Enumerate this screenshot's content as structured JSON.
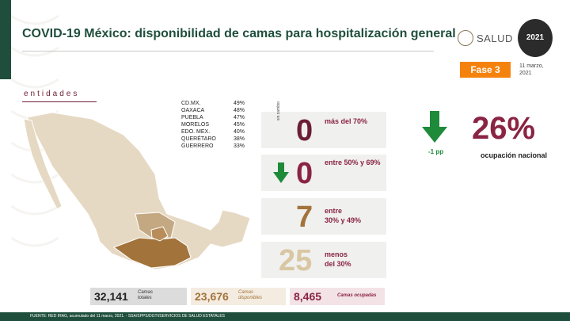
{
  "header": {
    "title": "COVID-19 México: disponibilidad de camas para hospitalización general",
    "salud_logo": "SALUD",
    "year_logo": "2021",
    "phase": "Fase 3",
    "date_line1": "11 marzo,",
    "date_line2": "2021"
  },
  "map_section": {
    "label": "entidades",
    "states": [
      {
        "name": "CD.MX.",
        "pct": "49%"
      },
      {
        "name": "OAXACA",
        "pct": "48%"
      },
      {
        "name": "PUEBLA",
        "pct": "47%"
      },
      {
        "name": "MORELOS",
        "pct": "45%"
      },
      {
        "name": "EDO. MEX.",
        "pct": "40%"
      },
      {
        "name": "QUERÉTARO",
        "pct": "38%"
      },
      {
        "name": "GUERRERO",
        "pct": "33%"
      }
    ]
  },
  "categories": [
    {
      "value": "0",
      "label1": "más del 70%",
      "label2": "",
      "color": "#6b1e34",
      "side_label": "sin cambio"
    },
    {
      "value": "0",
      "label1": "entre 50% y 69%",
      "label2": "",
      "color": "#8a2444"
    },
    {
      "value": "7",
      "label1": "entre",
      "label2": "30% y 49%",
      "color": "#a3733c"
    },
    {
      "value": "25",
      "label1": "menos",
      "label2": "del 30%",
      "color": "#d9c7a3"
    }
  ],
  "national": {
    "pct": "26%",
    "label": "ocupación nacional",
    "delta": "-1 pp"
  },
  "summary": {
    "total_value": "32,141",
    "total_label1": "Camas",
    "total_label2": "totales",
    "available_value": "23,676",
    "available_label1": "Camas",
    "available_label2": "disponibles",
    "occupied_value": "8,465",
    "occupied_label": "Camas ocupadas"
  },
  "footer": {
    "source": "FUENTE: RED IRAG, acumulado del 11 marzo, 2021.  -  SSA/SPPS/DGTI/SERVICIOS DE SALUD ESTATALES"
  },
  "colors": {
    "green": "#1f4f3c",
    "maroon": "#8a2444",
    "orange": "#f5820d",
    "arrow_green": "#1f8a3a"
  }
}
